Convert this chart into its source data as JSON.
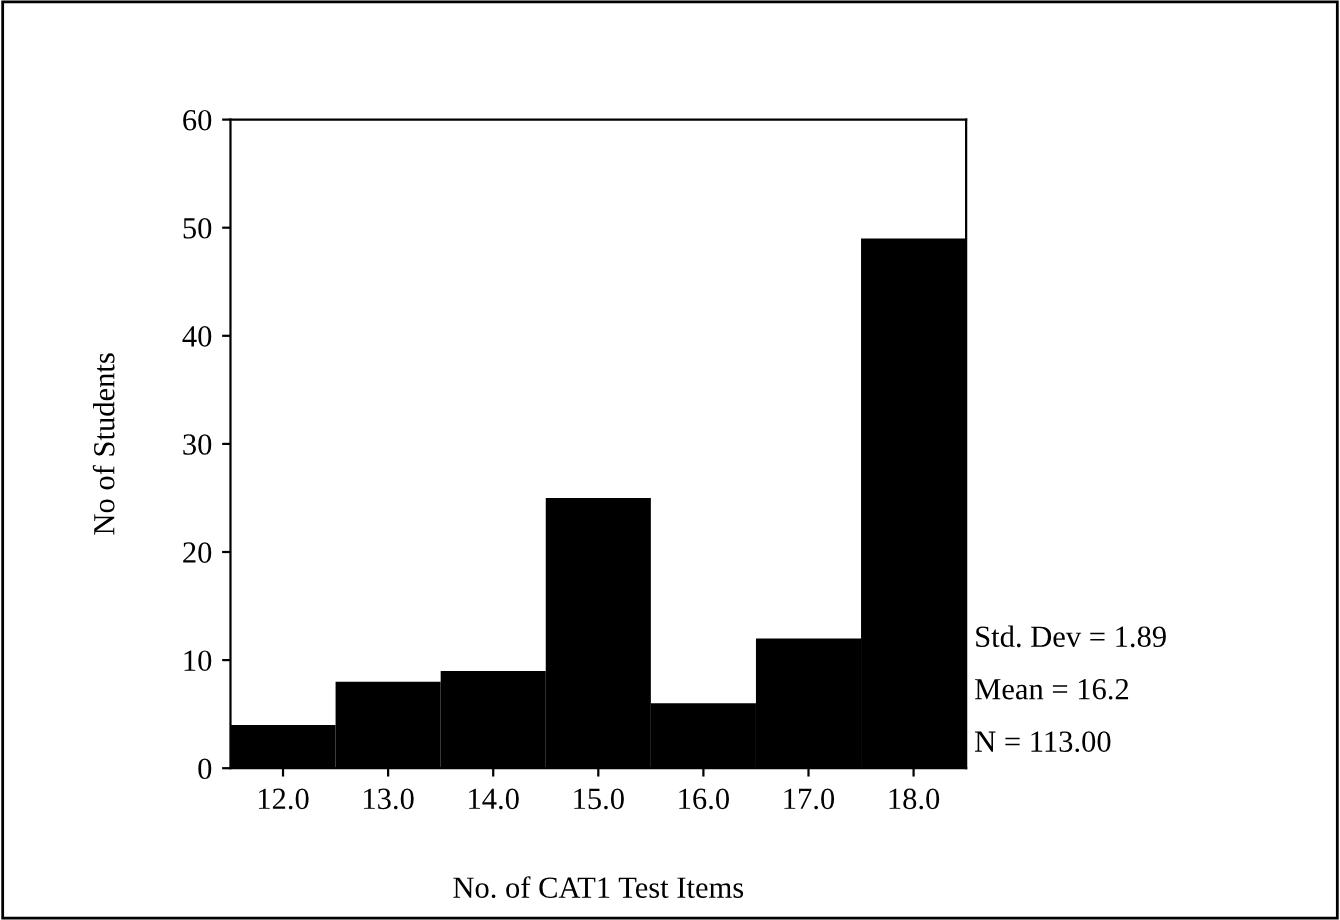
{
  "chart_data": {
    "type": "histogram",
    "xlabel": "No. of CAT1 Test Items",
    "ylabel": "No of Students",
    "bins": [
      11.5,
      12.5,
      13.5,
      14.5,
      15.5,
      16.5,
      17.5,
      18.5
    ],
    "values": [
      4,
      8,
      9,
      25,
      6,
      12,
      49
    ],
    "color": "#000000",
    "xlim": [
      11.5,
      18.5
    ],
    "xticks": [
      {
        "value": 12,
        "label": "12.0"
      },
      {
        "value": 13,
        "label": "13.0"
      },
      {
        "value": 14,
        "label": "14.0"
      },
      {
        "value": 15,
        "label": "15.0"
      },
      {
        "value": 16,
        "label": "16.0"
      },
      {
        "value": 17,
        "label": "17.0"
      },
      {
        "value": 18,
        "label": "18.0"
      }
    ],
    "ylim": [
      0,
      60
    ],
    "yticks": [
      0,
      10,
      20,
      30,
      40,
      50,
      60
    ],
    "grid": false,
    "legend": false,
    "annotations": [
      "Std. Dev = 1.89",
      "Mean = 16.2",
      "N = 113.00"
    ]
  }
}
